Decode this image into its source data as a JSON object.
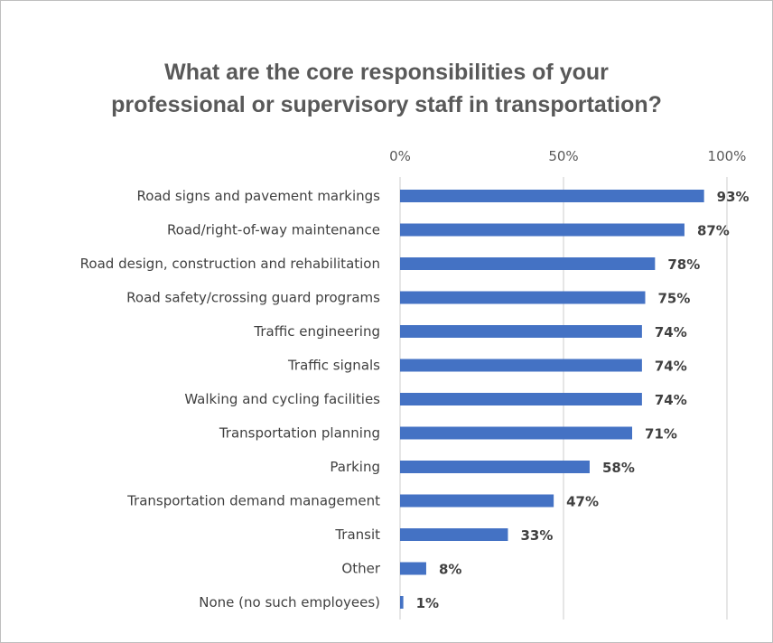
{
  "chart_data": {
    "type": "bar",
    "orientation": "horizontal",
    "title_lines": [
      "What are the core responsibilities of your",
      "professional or supervisory staff in transportation?"
    ],
    "categories": [
      "Road signs and pavement markings",
      "Road/right-of-way maintenance",
      "Road design, construction and rehabilitation",
      "Road safety/crossing guard programs",
      "Traffic engineering",
      "Traffic signals",
      "Walking and cycling facilities",
      "Transportation planning",
      "Parking",
      "Transportation demand management",
      "Transit",
      "Other",
      "None (no such employees)"
    ],
    "values": [
      93,
      87,
      78,
      75,
      74,
      74,
      74,
      71,
      58,
      47,
      33,
      8,
      1
    ],
    "value_labels": [
      "93%",
      "87%",
      "78%",
      "75%",
      "74%",
      "74%",
      "74%",
      "71%",
      "58%",
      "47%",
      "33%",
      "8%",
      "1%"
    ],
    "xlim": [
      0,
      100
    ],
    "x_ticks": [
      0,
      50,
      100
    ],
    "x_tick_labels": [
      "0%",
      "50%",
      "100%"
    ],
    "x_axis_position": "top",
    "grid": true,
    "legend": "none",
    "bar_color": "#4472C4",
    "grid_color": "#d9d9d9"
  }
}
